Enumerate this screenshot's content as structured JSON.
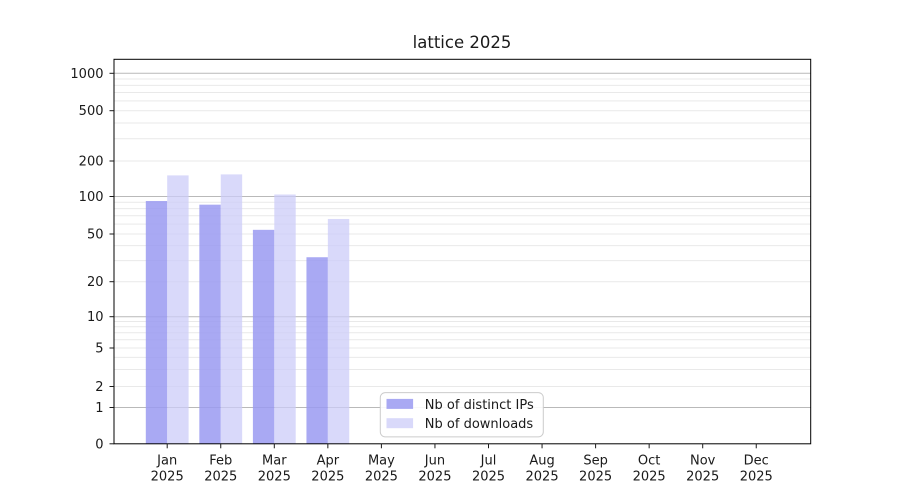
{
  "chart_data": {
    "type": "bar",
    "title": "lattice 2025",
    "categories": [
      "Jan",
      "Feb",
      "Mar",
      "Apr",
      "May",
      "Jun",
      "Jul",
      "Aug",
      "Sep",
      "Oct",
      "Nov",
      "Dec"
    ],
    "category_year": "2025",
    "series": [
      {
        "name": "Nb of distinct IPs",
        "color": "#9a9af1",
        "opacity": 0.85,
        "values": [
          92,
          86,
          54,
          32,
          0,
          0,
          0,
          0,
          0,
          0,
          0,
          0
        ]
      },
      {
        "name": "Nb of downloads",
        "color": "#ccccf8",
        "opacity": 0.75,
        "values": [
          151,
          154,
          104,
          66,
          0,
          0,
          0,
          0,
          0,
          0,
          0,
          0
        ]
      }
    ],
    "y_axis": {
      "scale": "symlog",
      "tick_labels": [
        "0",
        "1",
        "2",
        "5",
        "10",
        "20",
        "50",
        "100",
        "200",
        "500",
        "1000"
      ],
      "tick_values": [
        0,
        1,
        2,
        5,
        10,
        20,
        50,
        100,
        200,
        500,
        1000
      ],
      "ylim": [
        0,
        1300
      ]
    },
    "x_axis": {
      "tick_label_year": "2025"
    },
    "grid": {
      "major_color": "#b9b9b9",
      "minor_color": "#e9e9e9",
      "major_values": [
        1,
        10,
        100,
        1000
      ],
      "minor_values": [
        2,
        3,
        4,
        5,
        6,
        7,
        8,
        9,
        20,
        30,
        40,
        50,
        60,
        70,
        80,
        90,
        200,
        300,
        400,
        500,
        600,
        700,
        800,
        900
      ]
    },
    "legend": {
      "position": "lower center",
      "border_color": "#cccccc",
      "background": "#ffffff"
    },
    "frame_color": "#000000",
    "background_color": "#ffffff"
  }
}
